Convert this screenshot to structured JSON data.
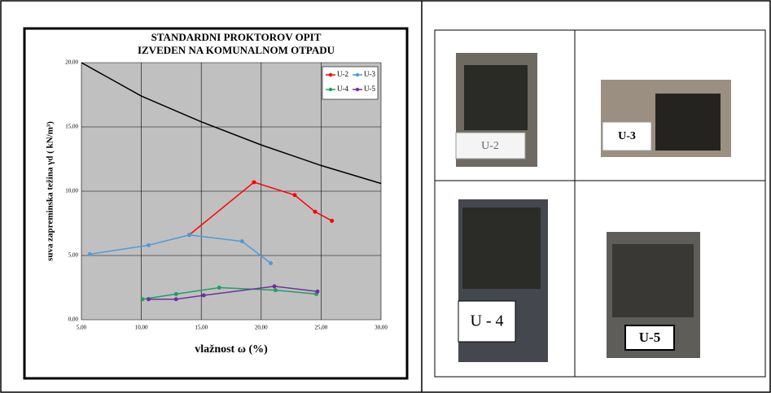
{
  "chart_data": {
    "type": "line",
    "title": [
      "STANDARDNI PROKTOROV OPIT",
      "IZVEDEN NA KOMUNALNOM OTPADU"
    ],
    "x_label": "vlažnost ω (%)",
    "y_label": "suva zapreminska težina γd ( kN/m³)",
    "xlim": [
      5,
      30
    ],
    "xticks": [
      {
        "value": 5,
        "label": "5,00"
      },
      {
        "value": 10,
        "label": "10,00"
      },
      {
        "value": 15,
        "label": "15,00"
      },
      {
        "value": 20,
        "label": "20,00"
      },
      {
        "value": 25,
        "label": "25,00"
      },
      {
        "value": 30,
        "label": "30,00"
      }
    ],
    "ylim": [
      0,
      20
    ],
    "yticks": [
      {
        "value": 0,
        "label": "0,00"
      },
      {
        "value": 5,
        "label": "5,00"
      },
      {
        "value": 10,
        "label": "10,00"
      },
      {
        "value": 15,
        "label": "15,00"
      },
      {
        "value": 20,
        "label": "20,00"
      }
    ],
    "grid": true,
    "legend": "upper right",
    "reference_line": {
      "color": "#000000",
      "x": [
        5,
        10,
        15,
        20,
        25,
        30
      ],
      "values": [
        20,
        17.4,
        15.4,
        13.6,
        12.0,
        10.6
      ]
    },
    "series": [
      {
        "name": "U-2",
        "color": "#ff0000",
        "x": [
          14.0,
          19.4,
          22.8,
          24.5,
          25.9
        ],
        "values": [
          6.6,
          10.7,
          9.7,
          8.4,
          7.7
        ]
      },
      {
        "name": "U-3",
        "color": "#4f9bd9",
        "x": [
          5.7,
          10.6,
          14.0,
          18.4,
          20.8
        ],
        "values": [
          5.1,
          5.8,
          6.6,
          6.1,
          4.4
        ]
      },
      {
        "name": "U-4",
        "color": "#1fa060",
        "x": [
          10.1,
          12.9,
          16.5,
          21.2,
          24.6
        ],
        "values": [
          1.6,
          2.0,
          2.5,
          2.3,
          2.0
        ]
      },
      {
        "name": "U-5",
        "color": "#7030a0",
        "x": [
          10.6,
          12.9,
          15.2,
          21.1,
          24.7
        ],
        "values": [
          1.6,
          1.6,
          1.9,
          2.6,
          2.2
        ]
      }
    ]
  },
  "photos": [
    {
      "label": "U-2"
    },
    {
      "label": "U-3"
    },
    {
      "label": "U - 4"
    },
    {
      "label": "U-5"
    }
  ]
}
